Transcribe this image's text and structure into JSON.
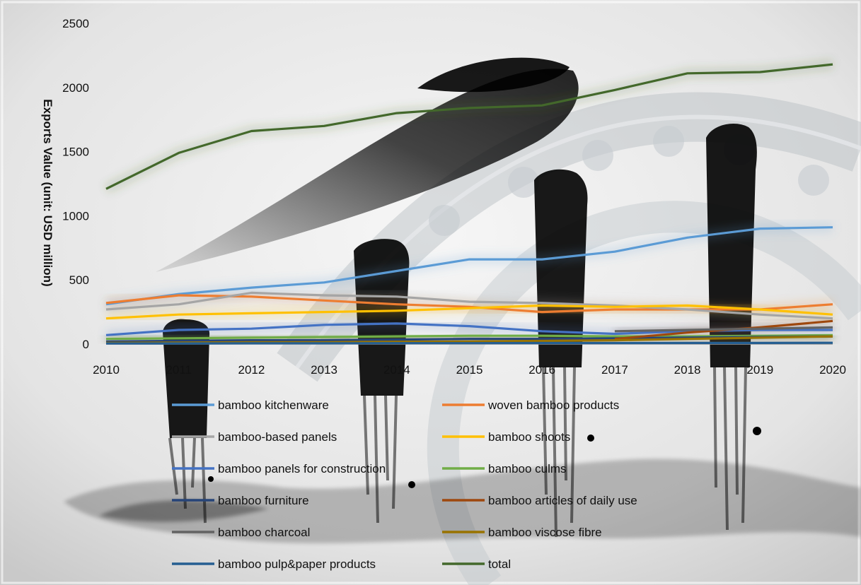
{
  "chart_data": {
    "type": "line",
    "title": "",
    "xlabel": "",
    "ylabel": "Exports Value (unit: USD million)",
    "x": [
      "2010",
      "2011",
      "2012",
      "2013",
      "2014",
      "2015",
      "2016",
      "2017",
      "2018",
      "2019",
      "2020"
    ],
    "x_tick_labels": [
      "2010",
      "2011",
      "2012",
      "2013",
      "2014",
      "2015",
      "2016",
      "2017",
      "2018",
      "2019",
      "2020"
    ],
    "y_ticks": [
      "0",
      "500",
      "1000",
      "1500",
      "2000",
      "2500"
    ],
    "ylim": [
      0,
      2500
    ],
    "grid": false,
    "legend_position": "bottom",
    "series": [
      {
        "name": "bamboo kitchenware",
        "color": "#5b9bd5",
        "values": [
          310,
          390,
          440,
          480,
          570,
          660,
          660,
          720,
          830,
          900,
          910
        ]
      },
      {
        "name": "woven bamboo products",
        "color": "#ed7d31",
        "values": [
          320,
          380,
          370,
          340,
          310,
          290,
          250,
          270,
          270,
          270,
          310
        ]
      },
      {
        "name": "bamboo-based panels",
        "color": "#a5a5a5",
        "values": [
          270,
          310,
          400,
          380,
          370,
          330,
          320,
          300,
          270,
          230,
          200
        ]
      },
      {
        "name": "bamboo shoots",
        "color": "#ffc000",
        "values": [
          200,
          230,
          240,
          250,
          260,
          280,
          300,
          290,
          300,
          270,
          230
        ]
      },
      {
        "name": "bamboo panels for construction",
        "color": "#4472c4",
        "values": [
          70,
          110,
          120,
          150,
          160,
          140,
          100,
          80,
          100,
          110,
          110
        ]
      },
      {
        "name": "bamboo culms",
        "color": "#70ad47",
        "values": [
          40,
          45,
          50,
          55,
          60,
          65,
          65,
          60,
          60,
          65,
          70
        ]
      },
      {
        "name": "bamboo furniture",
        "color": "#264478",
        "values": [
          20,
          25,
          30,
          30,
          35,
          40,
          40,
          45,
          50,
          55,
          60
        ]
      },
      {
        "name": "bamboo articles of daily use",
        "color": "#9e480e",
        "values": [
          null,
          null,
          null,
          null,
          null,
          null,
          null,
          40,
          90,
          130,
          180
        ]
      },
      {
        "name": "bamboo charcoal",
        "color": "#636363",
        "values": [
          null,
          null,
          null,
          null,
          null,
          null,
          null,
          100,
          110,
          120,
          130
        ]
      },
      {
        "name": "bamboo viscose fibre",
        "color": "#997300",
        "values": [
          10,
          12,
          15,
          15,
          18,
          20,
          25,
          30,
          40,
          50,
          60
        ]
      },
      {
        "name": "bamboo pulp&paper products",
        "color": "#255e91",
        "values": [
          5,
          5,
          6,
          6,
          7,
          7,
          8,
          8,
          9,
          9,
          10
        ]
      },
      {
        "name": "total",
        "color": "#43682b",
        "values": [
          1210,
          1490,
          1660,
          1700,
          1800,
          1840,
          1860,
          1980,
          2110,
          2120,
          2180
        ]
      }
    ]
  }
}
